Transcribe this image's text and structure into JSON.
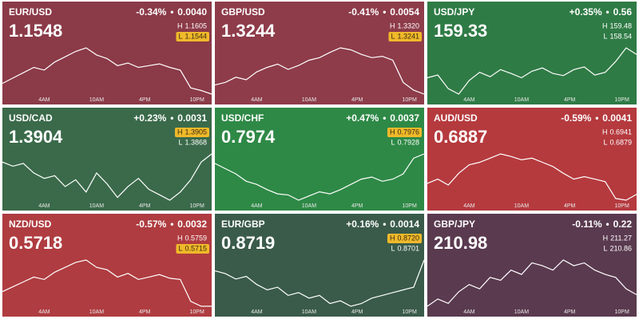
{
  "labels": {
    "high": "H",
    "low": "L"
  },
  "time_labels": [
    "4AM",
    "10AM",
    "4PM",
    "10PM"
  ],
  "tiles": [
    {
      "pair": "EUR/USD",
      "change_pct": "-0.34%",
      "change": "0.0040",
      "price": "1.1548",
      "high": "1.1605",
      "low": "1.1544",
      "highlight": "low",
      "color": "#8b3a48",
      "values": [
        1.156,
        1.1566,
        1.1572,
        1.1578,
        1.1575,
        1.1584,
        1.159,
        1.1596,
        1.16,
        1.1592,
        1.1588,
        1.158,
        1.1583,
        1.1578,
        1.158,
        1.1582,
        1.1578,
        1.1575,
        1.1555,
        1.1552,
        1.1548
      ]
    },
    {
      "pair": "GBP/USD",
      "change_pct": "-0.41%",
      "change": "0.0054",
      "price": "1.3244",
      "high": "1.3320",
      "low": "1.3241",
      "highlight": "low",
      "color": "#8e3c4a",
      "values": [
        1.3258,
        1.3262,
        1.327,
        1.3266,
        1.3278,
        1.3285,
        1.329,
        1.3282,
        1.3288,
        1.3296,
        1.33,
        1.3308,
        1.3315,
        1.3312,
        1.3305,
        1.33,
        1.3302,
        1.3296,
        1.3262,
        1.325,
        1.3244
      ]
    },
    {
      "pair": "USD/JPY",
      "change_pct": "+0.35%",
      "change": "0.56",
      "price": "159.33",
      "high": "159.48",
      "low": "158.54",
      "color": "#2f7b45",
      "values": [
        158.9,
        158.95,
        158.7,
        158.6,
        158.85,
        159.0,
        158.92,
        159.05,
        158.98,
        158.9,
        159.02,
        159.08,
        158.98,
        158.94,
        159.05,
        159.1,
        158.95,
        159.0,
        159.2,
        159.45,
        159.33
      ]
    },
    {
      "pair": "USD/CAD",
      "change_pct": "+0.23%",
      "change": "0.0031",
      "price": "1.3904",
      "high": "1.3905",
      "low": "1.3868",
      "highlight": "high",
      "color": "#3a6a4a",
      "values": [
        1.3898,
        1.3895,
        1.3897,
        1.389,
        1.3886,
        1.3888,
        1.388,
        1.3885,
        1.3876,
        1.389,
        1.3882,
        1.3872,
        1.388,
        1.3886,
        1.3878,
        1.3874,
        1.387,
        1.3876,
        1.3885,
        1.3898,
        1.3904
      ]
    },
    {
      "pair": "USD/CHF",
      "change_pct": "+0.47%",
      "change": "0.0037",
      "price": "0.7974",
      "high": "0.7976",
      "low": "0.7928",
      "highlight": "high",
      "color": "#2e8946",
      "values": [
        0.7965,
        0.796,
        0.7955,
        0.7948,
        0.7945,
        0.794,
        0.7936,
        0.7935,
        0.793,
        0.7934,
        0.7938,
        0.7936,
        0.794,
        0.7945,
        0.795,
        0.7952,
        0.7948,
        0.795,
        0.7955,
        0.797,
        0.7974
      ]
    },
    {
      "pair": "AUD/USD",
      "change_pct": "-0.59%",
      "change": "0.0041",
      "price": "0.6887",
      "high": "0.6941",
      "low": "0.6879",
      "color": "#b53a3e",
      "values": [
        0.69,
        0.6905,
        0.6898,
        0.6912,
        0.6922,
        0.6925,
        0.693,
        0.6935,
        0.6932,
        0.6928,
        0.693,
        0.6925,
        0.692,
        0.6912,
        0.6905,
        0.6908,
        0.6905,
        0.6902,
        0.6882,
        0.688,
        0.6887
      ]
    },
    {
      "pair": "NZD/USD",
      "change_pct": "-0.57%",
      "change": "0.0032",
      "price": "0.5718",
      "high": "0.5759",
      "low": "0.5715",
      "highlight": "low",
      "color": "#af3c40",
      "values": [
        0.573,
        0.5734,
        0.5738,
        0.5742,
        0.574,
        0.5746,
        0.575,
        0.5754,
        0.5756,
        0.575,
        0.5748,
        0.5742,
        0.5745,
        0.574,
        0.5742,
        0.5744,
        0.5741,
        0.574,
        0.5722,
        0.5718,
        0.5718
      ]
    },
    {
      "pair": "EUR/GBP",
      "change_pct": "+0.16%",
      "change": "0.0014",
      "price": "0.8719",
      "high": "0.8720",
      "low": "0.8701",
      "highlight": "high",
      "color": "#3a5b4a",
      "values": [
        0.8715,
        0.8714,
        0.8712,
        0.8713,
        0.871,
        0.8708,
        0.8709,
        0.8706,
        0.8707,
        0.8705,
        0.8706,
        0.8703,
        0.8704,
        0.8702,
        0.8703,
        0.8705,
        0.8706,
        0.8707,
        0.8708,
        0.8709,
        0.8719
      ]
    },
    {
      "pair": "GBP/JPY",
      "change_pct": "-0.11%",
      "change": "0.22",
      "price": "210.98",
      "high": "211.27",
      "low": "210.86",
      "color": "#5a3a4f",
      "values": [
        210.9,
        210.95,
        210.92,
        211.0,
        211.05,
        211.02,
        211.1,
        211.08,
        211.15,
        211.12,
        211.2,
        211.18,
        211.15,
        211.22,
        211.18,
        211.2,
        211.15,
        211.12,
        211.1,
        211.02,
        210.98
      ]
    }
  ]
}
